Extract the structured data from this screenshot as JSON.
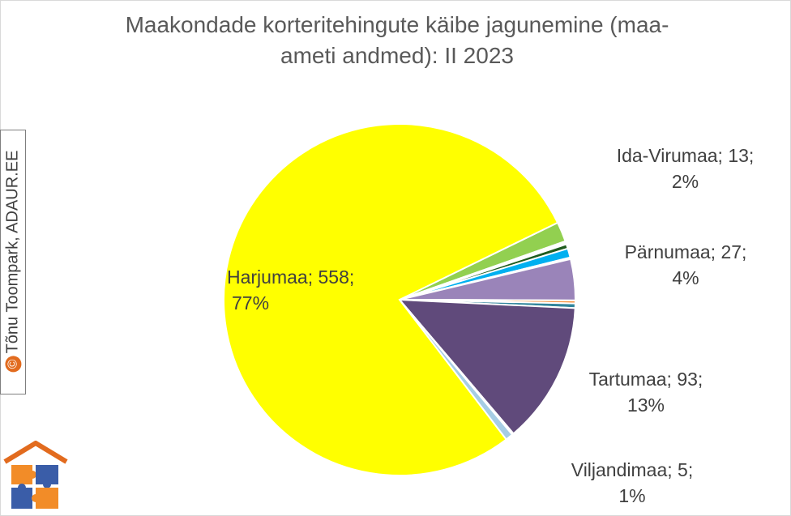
{
  "chart_data": {
    "type": "pie",
    "title_line1": "Maakondade korteritehingute käibe jagunemine (maa-",
    "title_line2": "ameti andmed): II 2023",
    "slices": [
      {
        "name": "Ida-Virumaa",
        "value": 13,
        "color": "#92d050",
        "label_line1": "Ida-Virumaa; 13;",
        "label_line2": "2%"
      },
      {
        "name": "",
        "value": 1,
        "color": "#f4b183"
      },
      {
        "name": "",
        "value": 1,
        "color": "#ffd966"
      },
      {
        "name": "",
        "value": 3,
        "color": "#1f5c1f"
      },
      {
        "name": "",
        "value": 6,
        "color": "#00b0f0"
      },
      {
        "name": "",
        "value": 1,
        "color": "#ffffff"
      },
      {
        "name": "Pärnumaa",
        "value": 27,
        "color": "#9a84b9",
        "label_line1": "Pärnumaa; 27;",
        "label_line2": "4%"
      },
      {
        "name": "",
        "value": 2,
        "color": "#f79646"
      },
      {
        "name": "",
        "value": 3,
        "color": "#31859c"
      },
      {
        "name": "Tartumaa",
        "value": 93,
        "color": "#604a7b",
        "label_line1": "Tartumaa; 93;",
        "label_line2": "13%"
      },
      {
        "name": "",
        "value": 1,
        "color": "#cdb8e8"
      },
      {
        "name": "Viljandimaa",
        "value": 5,
        "color": "#a6cde4",
        "label_line1": "Viljandimaa; 5;",
        "label_line2": "1%"
      },
      {
        "name": "Harjumaa",
        "value": 558,
        "color": "#ffff00",
        "label_line1": "Harjumaa; 558;",
        "label_line2": "77%"
      }
    ]
  },
  "credit": {
    "symbol": "©",
    "text": "Tõnu Toompark, ADAUR.EE"
  },
  "colors": {
    "title": "#595959",
    "label": "#404040",
    "logo_roof": "#e26b1e",
    "logo_puzzle_orange": "#f28c28",
    "logo_puzzle_blue": "#3a5da8"
  }
}
